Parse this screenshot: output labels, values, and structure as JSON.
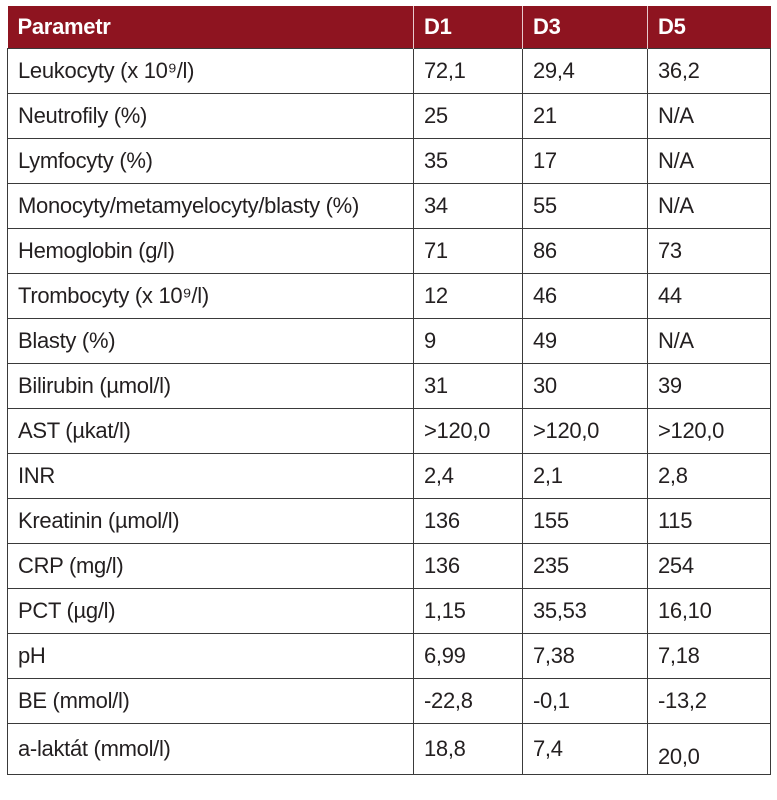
{
  "table": {
    "headers": [
      "Parametr",
      "D1",
      "D3",
      "D5"
    ],
    "rows": [
      [
        "Leukocyty (x 10⁹/l)",
        "72,1",
        "29,4",
        "36,2"
      ],
      [
        "Neutrofily (%)",
        "25",
        "21",
        "N/A"
      ],
      [
        "Lymfocyty (%)",
        "35",
        "17",
        "N/A"
      ],
      [
        "Monocyty/metamyelocyty/blasty (%)",
        "34",
        "55",
        "N/A"
      ],
      [
        "Hemoglobin (g/l)",
        "71",
        "86",
        "73"
      ],
      [
        "Trombocyty (x 10⁹/l)",
        "12",
        "46",
        "44"
      ],
      [
        "Blasty (%)",
        "9",
        "49",
        "N/A"
      ],
      [
        "Bilirubin (µmol/l)",
        "31",
        "30",
        "39"
      ],
      [
        "AST (µkat/l)",
        ">120,0",
        ">120,0",
        ">120,0"
      ],
      [
        "INR",
        "2,4",
        "2,1",
        "2,8"
      ],
      [
        "Kreatinin (µmol/l)",
        "136",
        "155",
        "115"
      ],
      [
        "CRP (mg/l)",
        "136",
        "235",
        "254"
      ],
      [
        "PCT (µg/l)",
        "1,15",
        "35,53",
        "16,10"
      ],
      [
        "pH",
        "6,99",
        "7,38",
        "7,18"
      ],
      [
        "BE (mmol/l)",
        "-22,8",
        "-0,1",
        "-13,2"
      ],
      [
        "a-laktát (mmol/l)",
        "18,8",
        "7,4",
        "20,0"
      ]
    ]
  },
  "colors": {
    "header_bg": "#8e1420",
    "header_text": "#ffffff",
    "border": "#3a3a3a"
  }
}
